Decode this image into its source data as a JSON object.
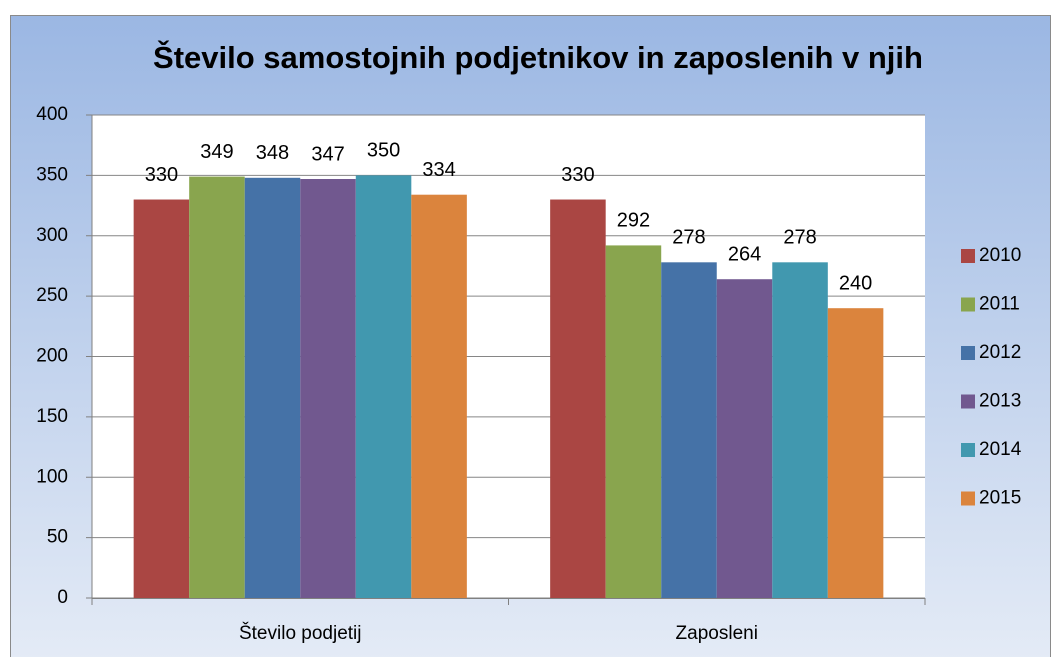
{
  "chart_data": {
    "type": "bar",
    "title": "Število samostojnih podjetnikov in zaposlenih v njih",
    "categories": [
      "Število podjetij",
      "Zaposleni"
    ],
    "series": [
      {
        "name": "2010",
        "color": "#aa4643",
        "values": [
          330,
          330
        ]
      },
      {
        "name": "2011",
        "color": "#89a54e",
        "values": [
          349,
          292
        ]
      },
      {
        "name": "2012",
        "color": "#4572a7",
        "values": [
          348,
          278
        ]
      },
      {
        "name": "2013",
        "color": "#71588f",
        "values": [
          347,
          264
        ]
      },
      {
        "name": "2014",
        "color": "#4198af",
        "values": [
          350,
          278
        ]
      },
      {
        "name": "2015",
        "color": "#db843d",
        "values": [
          334,
          240
        ]
      }
    ],
    "ylim": [
      0,
      400
    ],
    "yticks": [
      0,
      50,
      100,
      150,
      200,
      250,
      300,
      350,
      400
    ],
    "grid": true,
    "legend": "right"
  }
}
